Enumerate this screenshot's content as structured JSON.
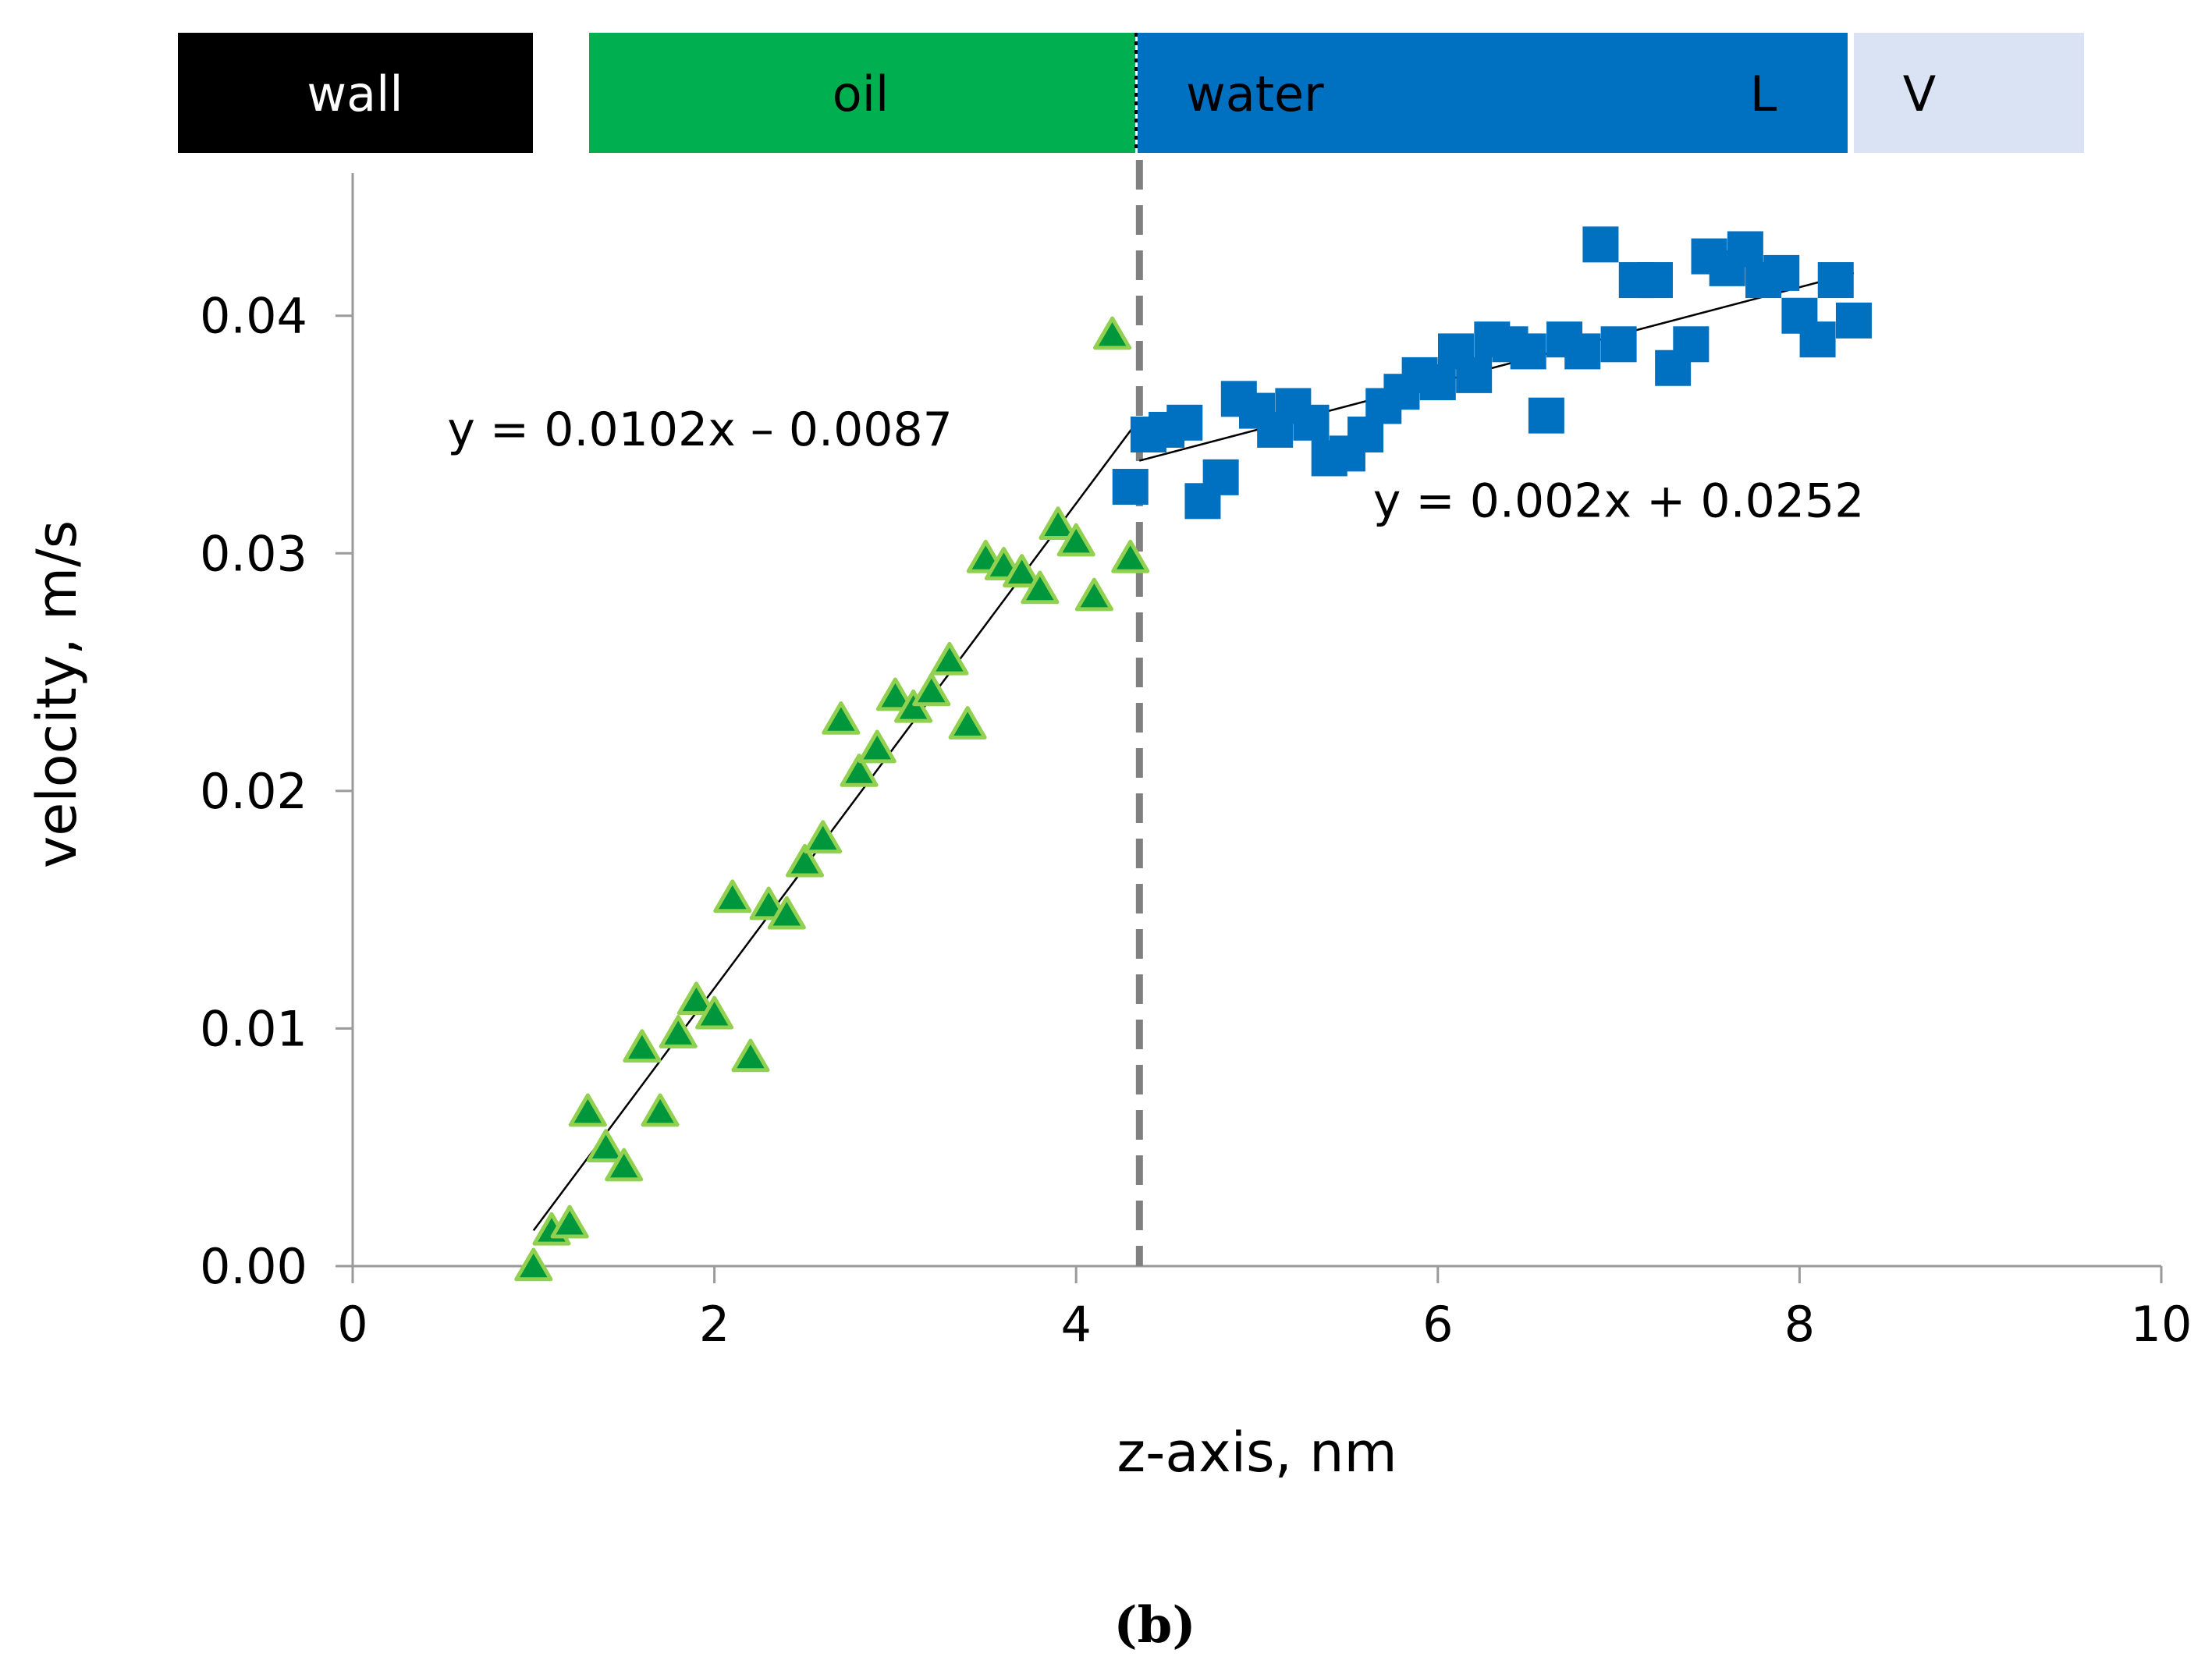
{
  "colors": {
    "wall": "#000000",
    "oil": "#00b050",
    "water": "#0070c0",
    "vapor": "#dae3f3",
    "triangle_fill": "#00963c",
    "triangle_stroke": "#92d050",
    "square_fill": "#0070c0",
    "fit_line": "#000000",
    "interface_line": "#808080"
  },
  "bands": {
    "wall": "wall",
    "oil": "oil",
    "water": "water",
    "liquid": "L",
    "vapor": "V"
  },
  "caption": "(b)",
  "chart_data": {
    "type": "scatter",
    "title": "",
    "xlabel": "z-axis, nm",
    "ylabel": "velocity, m/s",
    "xlim": [
      0,
      10
    ],
    "ylim": [
      0,
      0.046
    ],
    "xticks": [
      "0",
      "2",
      "4",
      "6",
      "8",
      "10"
    ],
    "yticks": [
      "0.00",
      "0.01",
      "0.02",
      "0.03",
      "0.04"
    ],
    "grid": false,
    "band_boundaries_x": {
      "wall_end": 1.0,
      "oil_start": 1.3,
      "interface": 4.35,
      "liquid_end": 8.3,
      "vapor_end": 9.6
    },
    "interface_x": 4.35,
    "series": [
      {
        "name": "oil",
        "marker": "triangle",
        "points": [
          [
            1.0,
            0.0
          ],
          [
            1.1,
            0.0015
          ],
          [
            1.2,
            0.0018
          ],
          [
            1.3,
            0.0065
          ],
          [
            1.4,
            0.005
          ],
          [
            1.5,
            0.0042
          ],
          [
            1.6,
            0.0092
          ],
          [
            1.7,
            0.0065
          ],
          [
            1.8,
            0.0098
          ],
          [
            1.9,
            0.0112
          ],
          [
            2.0,
            0.0106
          ],
          [
            2.1,
            0.0155
          ],
          [
            2.2,
            0.0088
          ],
          [
            2.3,
            0.0152
          ],
          [
            2.4,
            0.0148
          ],
          [
            2.5,
            0.017
          ],
          [
            2.6,
            0.018
          ],
          [
            2.7,
            0.023
          ],
          [
            2.8,
            0.0208
          ],
          [
            2.9,
            0.0218
          ],
          [
            3.0,
            0.024
          ],
          [
            3.1,
            0.0235
          ],
          [
            3.2,
            0.0242
          ],
          [
            3.3,
            0.0255
          ],
          [
            3.4,
            0.0228
          ],
          [
            3.5,
            0.0298
          ],
          [
            3.6,
            0.0295
          ],
          [
            3.7,
            0.0292
          ],
          [
            3.8,
            0.0285
          ],
          [
            3.9,
            0.0312
          ],
          [
            4.0,
            0.0305
          ],
          [
            4.1,
            0.0282
          ],
          [
            4.2,
            0.0392
          ],
          [
            4.3,
            0.0298
          ]
        ]
      },
      {
        "name": "water",
        "marker": "square",
        "points": [
          [
            4.3,
            0.0328
          ],
          [
            4.4,
            0.035
          ],
          [
            4.5,
            0.0352
          ],
          [
            4.6,
            0.0355
          ],
          [
            4.7,
            0.0322
          ],
          [
            4.8,
            0.0332
          ],
          [
            4.9,
            0.0365
          ],
          [
            5.0,
            0.036
          ],
          [
            5.1,
            0.0352
          ],
          [
            5.2,
            0.0362
          ],
          [
            5.3,
            0.0355
          ],
          [
            5.4,
            0.034
          ],
          [
            5.5,
            0.0342
          ],
          [
            5.6,
            0.035
          ],
          [
            5.7,
            0.0362
          ],
          [
            5.8,
            0.0368
          ],
          [
            5.9,
            0.0375
          ],
          [
            6.0,
            0.0372
          ],
          [
            6.1,
            0.0385
          ],
          [
            6.2,
            0.0375
          ],
          [
            6.3,
            0.039
          ],
          [
            6.4,
            0.0388
          ],
          [
            6.5,
            0.0385
          ],
          [
            6.6,
            0.0358
          ],
          [
            6.7,
            0.039
          ],
          [
            6.8,
            0.0385
          ],
          [
            6.9,
            0.043
          ],
          [
            7.0,
            0.0388
          ],
          [
            7.1,
            0.0415
          ],
          [
            7.2,
            0.0415
          ],
          [
            7.3,
            0.0378
          ],
          [
            7.4,
            0.0388
          ],
          [
            7.5,
            0.0425
          ],
          [
            7.6,
            0.042
          ],
          [
            7.7,
            0.0428
          ],
          [
            7.8,
            0.0415
          ],
          [
            7.9,
            0.0418
          ],
          [
            8.0,
            0.04
          ],
          [
            8.1,
            0.039
          ],
          [
            8.2,
            0.0415
          ],
          [
            8.3,
            0.0398
          ]
        ]
      }
    ],
    "fits": [
      {
        "name": "oil-fit",
        "slope": 0.0102,
        "intercept": -0.0087,
        "x_range": [
          1.0,
          4.35
        ],
        "label": "y = 0.0102x – 0.0087",
        "label_at": [
          1.3,
          0.0352
        ]
      },
      {
        "name": "water-fit",
        "slope": 0.002,
        "intercept": 0.0252,
        "x_range": [
          4.35,
          8.3
        ],
        "label": "y = 0.002x + 0.0252",
        "label_at": [
          7.0,
          0.0322
        ]
      }
    ]
  }
}
